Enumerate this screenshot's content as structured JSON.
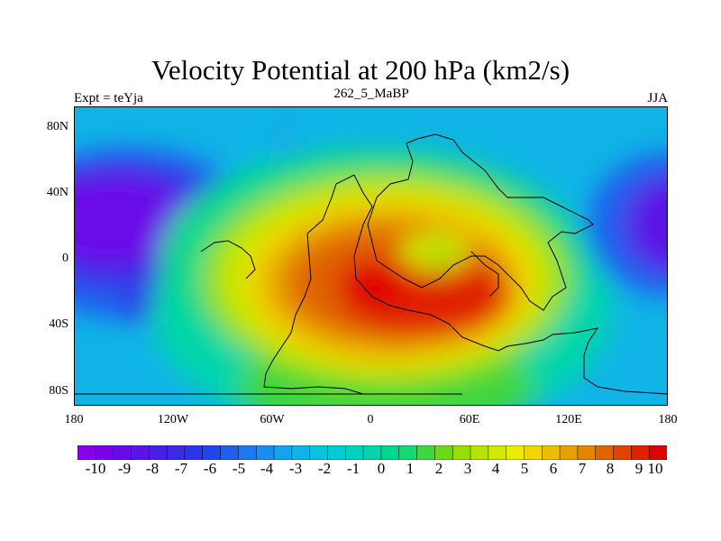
{
  "title": "Velocity Potential at 200 hPa (km2/s)",
  "subtitle": "262_5_MaBP",
  "left_label": "Expt = teYja",
  "right_label": "JJA",
  "map": {
    "lat_ticks": [
      "80N",
      "40N",
      "0",
      "40S",
      "80S"
    ],
    "lon_ticks": [
      "180",
      "120W",
      "60W",
      "0",
      "60E",
      "120E",
      "180"
    ]
  },
  "colorbar": {
    "colors": [
      "#8a00e6",
      "#7a00e8",
      "#6a0ae8",
      "#5a14e6",
      "#4a1ee4",
      "#3a2ae6",
      "#2a36e8",
      "#1e48ec",
      "#1e60ee",
      "#1e78ee",
      "#1a8ef0",
      "#14a4ec",
      "#10b4e6",
      "#08c2e0",
      "#00ccd6",
      "#00d2c2",
      "#00d6aa",
      "#00d88e",
      "#14d870",
      "#40d640",
      "#6cd81a",
      "#96e000",
      "#b6e400",
      "#d2e800",
      "#ecec00",
      "#f2d400",
      "#eebc00",
      "#e8a200",
      "#e48400",
      "#e06400",
      "#e04400",
      "#e02000",
      "#e00000"
    ],
    "labels": [
      "-10",
      "-9",
      "-8",
      "-7",
      "-6",
      "-5",
      "-4",
      "-3",
      "-2",
      "-1",
      "0",
      "1",
      "2",
      "3",
      "4",
      "5",
      "6",
      "7",
      "8",
      "9",
      "10"
    ]
  }
}
